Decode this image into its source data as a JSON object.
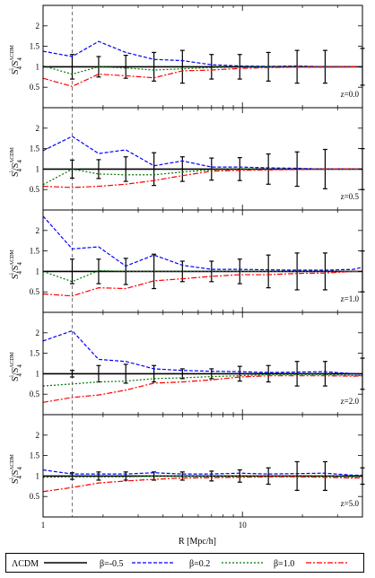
{
  "chart_data": {
    "type": "line",
    "shared": {
      "xlabel": "R [Mpc/h]",
      "xscale": "log",
      "xlim": [
        1,
        40
      ],
      "xticks": [
        {
          "v": 1,
          "label": "1"
        },
        {
          "v": 10,
          "label": "10"
        }
      ],
      "xminor": [
        2,
        3,
        4,
        5,
        6,
        7,
        8,
        9,
        20,
        30,
        40
      ],
      "ylim": [
        0,
        2.5
      ],
      "yticks": [
        {
          "v": 0.5,
          "label": "0.5"
        },
        {
          "v": 1,
          "label": "1"
        },
        {
          "v": 1.5,
          "label": "1.5"
        },
        {
          "v": 2,
          "label": "2"
        }
      ],
      "ylabel_main": "S",
      "ylabel_sub": "4",
      "ylabel_sup": "i",
      "ylabel_sep": "/S",
      "ylabel_sub2": "4",
      "ylabel_sup2": "ΛCDM",
      "vline_x": 1.4,
      "x": [
        1.0,
        1.4,
        1.9,
        2.6,
        3.6,
        5.0,
        7.0,
        9.7,
        13.5,
        18.8,
        26.0,
        36.0,
        40.0
      ],
      "error_x": [
        1.4,
        1.9,
        2.6,
        3.6,
        5.0,
        7.0,
        9.7,
        13.5,
        18.8,
        26.0,
        40.0
      ]
    },
    "legend": [
      {
        "label": "ΛCDM",
        "color": "#000000",
        "dash": "none"
      },
      {
        "label": "β=-0.5",
        "color": "#0000ff",
        "dash": "4,2"
      },
      {
        "label": "β=0.2",
        "color": "#007700",
        "dash": "2,2"
      },
      {
        "label": "β=1.0",
        "color": "#ff0000",
        "dash": "6,2,2,2"
      }
    ],
    "panels": [
      {
        "label": "z=0.0",
        "series": [
          {
            "name": "ΛCDM",
            "values": [
              1,
              1,
              1,
              1,
              1,
              1,
              1,
              1,
              1,
              1,
              1,
              1,
              1
            ]
          },
          {
            "name": "β=-0.5",
            "values": [
              1.38,
              1.25,
              1.62,
              1.35,
              1.18,
              1.15,
              1.05,
              1.02,
              1.01,
              1.02,
              1.0,
              1.0,
              1.0
            ]
          },
          {
            "name": "β=0.2",
            "values": [
              1.02,
              0.82,
              1.0,
              0.97,
              0.92,
              0.95,
              0.98,
              0.99,
              1.0,
              1.0,
              1.0,
              1.0,
              1.0
            ]
          },
          {
            "name": "β=1.0",
            "values": [
              0.72,
              0.52,
              0.82,
              0.78,
              0.73,
              0.9,
              0.92,
              0.96,
              0.98,
              0.99,
              0.99,
              1.0,
              1.0
            ]
          }
        ],
        "errors": [
          0.3,
          0.25,
          0.28,
          0.35,
          0.4,
          0.3,
          0.3,
          0.35,
          0.4,
          0.4,
          0.45
        ]
      },
      {
        "label": "z=0.5",
        "series": [
          {
            "name": "ΛCDM",
            "values": [
              1,
              1,
              1,
              1,
              1,
              1,
              1,
              1,
              1,
              1,
              1,
              1,
              1
            ]
          },
          {
            "name": "β=-0.5",
            "values": [
              1.45,
              1.8,
              1.38,
              1.47,
              1.08,
              1.2,
              1.05,
              1.05,
              1.03,
              1.02,
              1.0,
              1.0,
              1.0
            ]
          },
          {
            "name": "β=0.2",
            "values": [
              0.62,
              1.0,
              0.88,
              0.86,
              0.86,
              0.93,
              0.98,
              1.0,
              1.0,
              1.0,
              1.0,
              1.0,
              1.0
            ]
          },
          {
            "name": "β=1.0",
            "values": [
              0.58,
              0.55,
              0.58,
              0.63,
              0.72,
              0.84,
              0.95,
              0.97,
              0.98,
              0.99,
              1.0,
              1.0,
              1.0
            ]
          }
        ],
        "errors": [
          0.22,
          0.23,
          0.3,
          0.4,
          0.3,
          0.27,
          0.28,
          0.37,
          0.42,
          0.48,
          0.5
        ]
      },
      {
        "label": "z=1.0",
        "series": [
          {
            "name": "ΛCDM",
            "values": [
              1,
              1,
              1,
              1,
              1,
              1,
              1,
              1,
              1,
              1,
              1,
              1,
              1
            ]
          },
          {
            "name": "β=-0.5",
            "values": [
              2.35,
              1.55,
              1.6,
              1.13,
              1.4,
              1.15,
              1.05,
              1.05,
              1.04,
              1.03,
              1.03,
              1.05,
              1.1
            ]
          },
          {
            "name": "β=0.2",
            "values": [
              1.0,
              0.75,
              1.02,
              1.0,
              1.0,
              1.0,
              1.0,
              1.0,
              1.0,
              1.0,
              1.0,
              1.0,
              1.0
            ]
          },
          {
            "name": "β=1.0",
            "values": [
              0.45,
              0.4,
              0.6,
              0.58,
              0.77,
              0.82,
              0.88,
              0.92,
              0.92,
              0.95,
              0.96,
              1.0,
              1.0
            ]
          }
        ],
        "errors": [
          0.3,
          0.3,
          0.32,
          0.42,
          0.25,
          0.25,
          0.3,
          0.4,
          0.45,
          0.45,
          0.5
        ]
      },
      {
        "label": "z=2.0",
        "series": [
          {
            "name": "ΛCDM",
            "values": [
              1,
              1,
              1,
              1,
              1,
              1,
              1,
              1,
              1,
              1,
              1,
              1,
              1
            ]
          },
          {
            "name": "β=-0.5",
            "values": [
              1.8,
              2.05,
              1.35,
              1.3,
              1.12,
              1.08,
              1.06,
              1.05,
              1.03,
              1.04,
              1.05,
              1.0,
              0.98
            ]
          },
          {
            "name": "β=0.2",
            "values": [
              0.7,
              0.75,
              0.8,
              0.82,
              0.88,
              0.9,
              0.93,
              0.95,
              0.98,
              0.98,
              0.98,
              0.96,
              0.95
            ]
          },
          {
            "name": "β=1.0",
            "values": [
              0.3,
              0.42,
              0.48,
              0.6,
              0.77,
              0.8,
              0.85,
              0.92,
              0.95,
              0.95,
              0.95,
              0.94,
              0.95
            ]
          }
        ],
        "errors": [
          0.08,
          0.2,
          0.23,
          0.2,
          0.12,
          0.12,
          0.18,
          0.2,
          0.3,
          0.3,
          0.38
        ]
      },
      {
        "label": "z=5.0",
        "series": [
          {
            "name": "ΛCDM",
            "values": [
              1,
              1,
              1,
              1,
              1,
              1,
              1,
              1,
              1,
              1,
              1,
              1,
              1
            ]
          },
          {
            "name": "β=-0.5",
            "values": [
              1.15,
              1.05,
              1.05,
              1.05,
              1.08,
              1.05,
              1.05,
              1.07,
              1.05,
              1.06,
              1.07,
              1.02,
              1.02
            ]
          },
          {
            "name": "β=0.2",
            "values": [
              0.97,
              0.98,
              0.98,
              0.98,
              1.0,
              1.0,
              1.0,
              1.0,
              1.0,
              1.0,
              1.0,
              0.98,
              1.0
            ]
          },
          {
            "name": "β=1.0",
            "values": [
              0.62,
              0.72,
              0.83,
              0.88,
              0.92,
              0.95,
              0.96,
              0.97,
              0.98,
              0.98,
              0.97,
              0.95,
              0.96
            ]
          }
        ],
        "errors": [
          0.08,
          0.1,
          0.1,
          0.1,
          0.1,
          0.12,
          0.15,
          0.2,
          0.35,
          0.35,
          0.2
        ]
      }
    ]
  }
}
